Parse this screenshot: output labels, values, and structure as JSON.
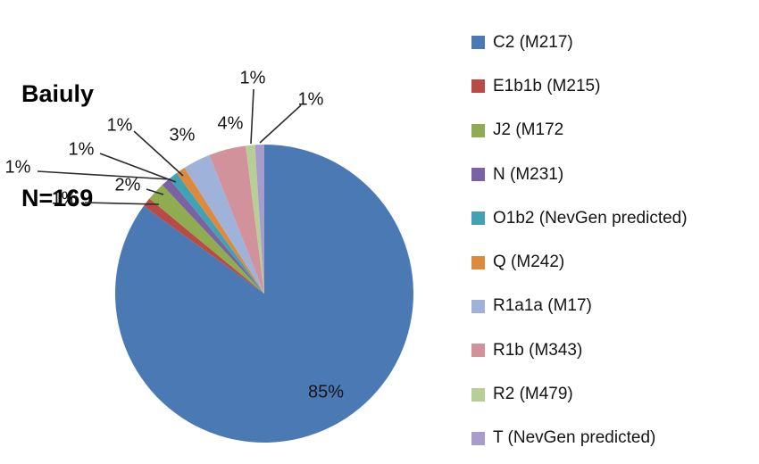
{
  "title": "Baiuly",
  "n_label": "N=169",
  "colors": {
    "background": "#ffffff",
    "text": "#141414",
    "leader_line": "#2b2b2b"
  },
  "chart_data": {
    "type": "pie",
    "title": "Baiuly",
    "sample_size_label": "N=169",
    "n": 169,
    "legend_position": "right",
    "start_angle_deg": 0,
    "direction": "clockwise",
    "slices": [
      {
        "id": "C2",
        "label": "C2 (M217)",
        "value_pct": 85,
        "data_label": "85%",
        "color": "#4A79B4"
      },
      {
        "id": "E1b1b",
        "label": "E1b1b (M215)",
        "value_pct": 1,
        "data_label": "1%",
        "color": "#B94B47"
      },
      {
        "id": "J2",
        "label": "J2 (M172",
        "value_pct": 2,
        "data_label": "2%",
        "color": "#8FAC51"
      },
      {
        "id": "N",
        "label": "N (M231)",
        "value_pct": 1,
        "data_label": "1%",
        "color": "#7B62A2"
      },
      {
        "id": "O1b2",
        "label": "O1b2 (NevGen predicted)",
        "value_pct": 1,
        "data_label": "1%",
        "color": "#41A2B4"
      },
      {
        "id": "Q",
        "label": "Q (M242)",
        "value_pct": 1,
        "data_label": "1%",
        "color": "#DD8A3D"
      },
      {
        "id": "R1a1a",
        "label": "R1a1a (M17)",
        "value_pct": 3,
        "data_label": "3%",
        "color": "#9FB3DA"
      },
      {
        "id": "R1b",
        "label": "R1b (M343)",
        "value_pct": 4,
        "data_label": "4%",
        "color": "#D2929B"
      },
      {
        "id": "R2",
        "label": "R2 (M479)",
        "value_pct": 1,
        "data_label": "1%",
        "color": "#B7CF94"
      },
      {
        "id": "T",
        "label": "T (NevGen predicted)",
        "value_pct": 1,
        "data_label": "1%",
        "color": "#A79CCB"
      }
    ]
  }
}
